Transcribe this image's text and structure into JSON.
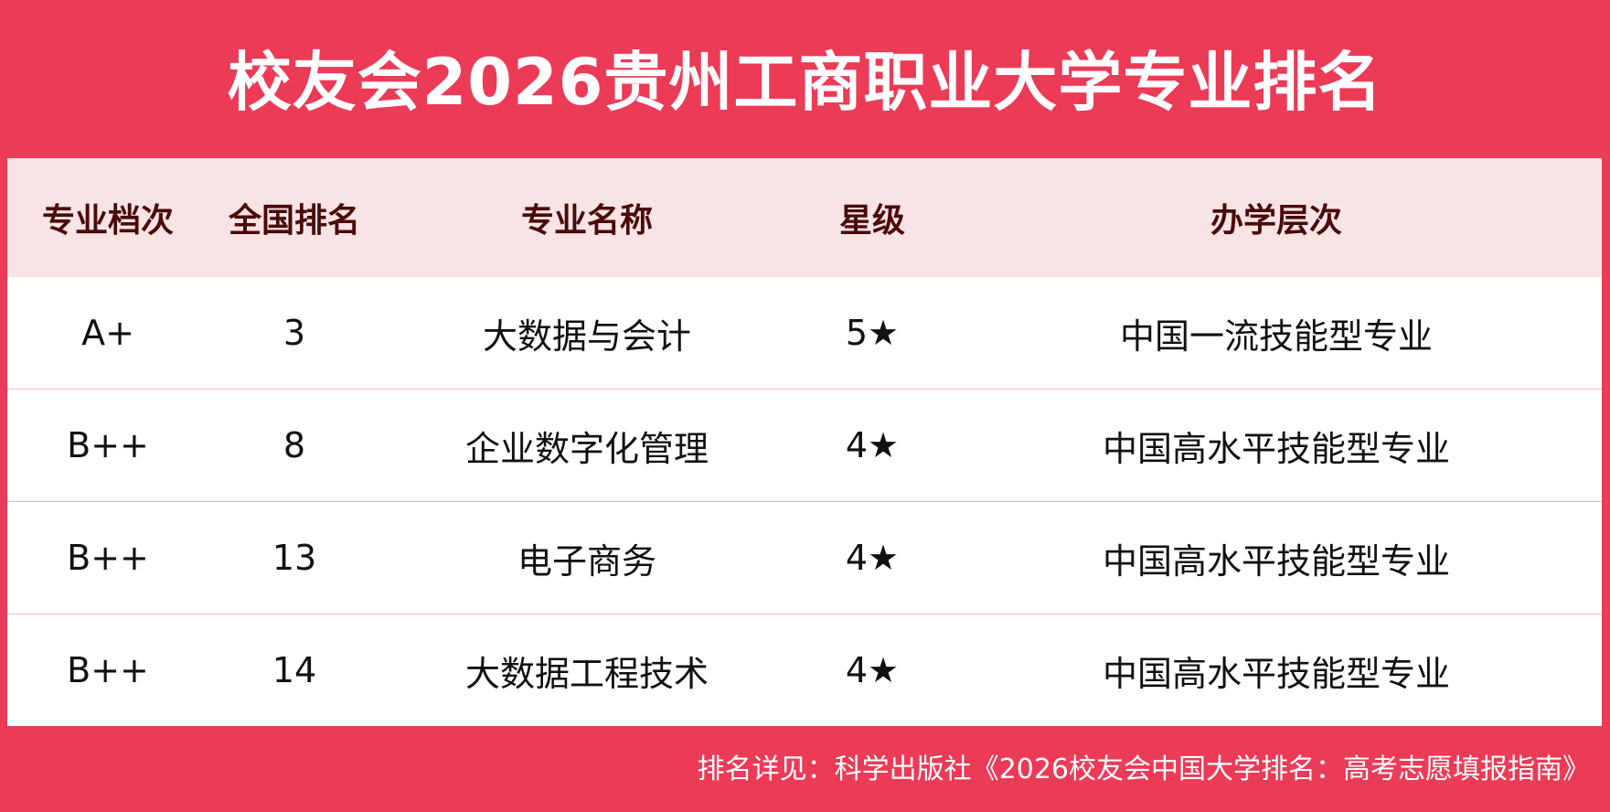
{
  "title": "校友会2026贵州工商职业大学专业排名",
  "table": {
    "headers": [
      "专业档次",
      "全国排名",
      "专业名称",
      "星级",
      "办学层次"
    ],
    "rows": [
      [
        "A+",
        "3",
        "大数据与会计",
        "5★",
        "中国一流技能型专业"
      ],
      [
        "B++",
        "8",
        "企业数字化管理",
        "4★",
        "中国高水平技能型专业"
      ],
      [
        "B++",
        "13",
        "电子商务",
        "4★",
        "中国高水平技能型专业"
      ],
      [
        "B++",
        "14",
        "大数据工程技术",
        "4★",
        "中国高水平技能型专业"
      ]
    ]
  },
  "footer": "排名详见：科学出版社《2026校友会中国大学排名：高考志愿填报指南》",
  "colors": {
    "accent": "#eb3b57",
    "header_bg": "#f8e3e5",
    "header_text": "#4a0a0a"
  }
}
